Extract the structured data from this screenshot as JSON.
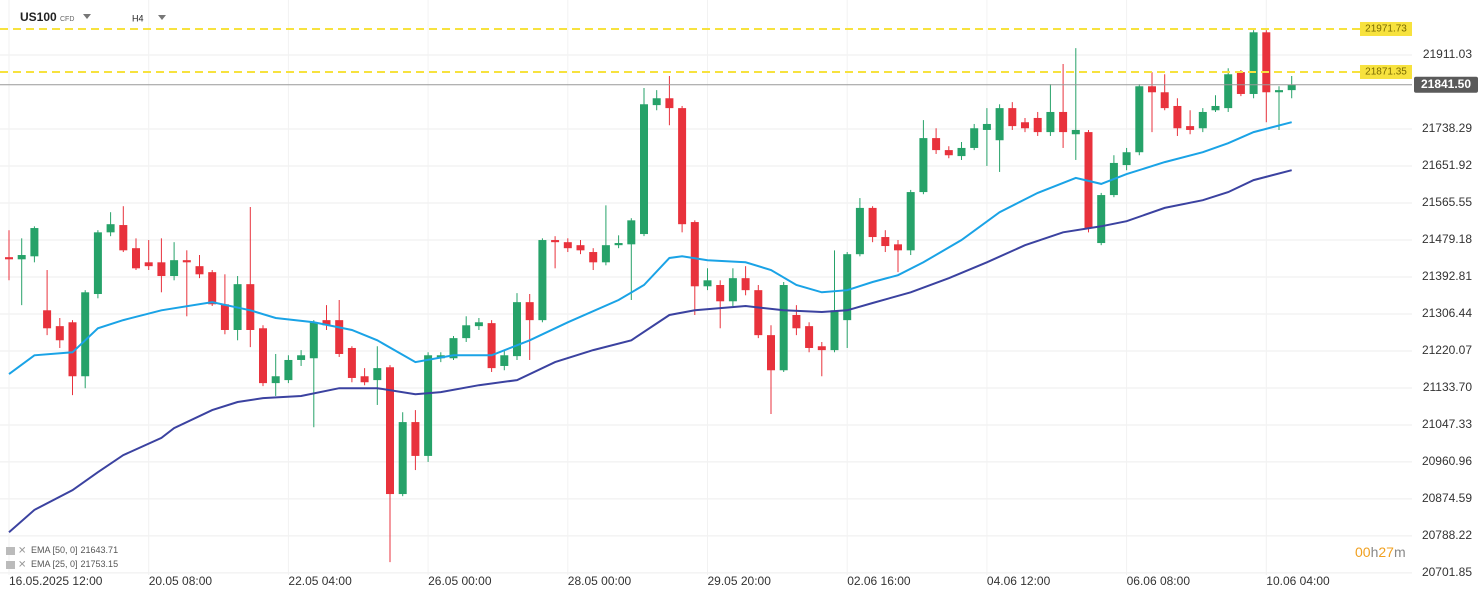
{
  "chart_data": {
    "type": "candlestick",
    "symbol": "US100",
    "symbol_tag": "CFD",
    "timeframe": "H4",
    "up_color": "#26a269",
    "down_color": "#e8323c",
    "categories": [
      "16.05.2025 12:00",
      null,
      null,
      null,
      null,
      null,
      null,
      null,
      null,
      null,
      null,
      "20.05 08:00",
      null,
      null,
      null,
      null,
      null,
      null,
      null,
      null,
      null,
      null,
      "22.05 04:00",
      null,
      null,
      null,
      null,
      null,
      null,
      null,
      null,
      null,
      null,
      "26.05 00:00",
      null,
      null,
      null,
      null,
      null,
      null,
      null,
      null,
      null,
      null,
      "28.05 00:00",
      null,
      null,
      null,
      null,
      null,
      null,
      null,
      null,
      null,
      null,
      "29.05 20:00",
      null,
      null,
      null,
      null,
      null,
      null,
      null,
      null,
      null,
      null,
      "02.06 16:00",
      null,
      null,
      null,
      null,
      null,
      null,
      null,
      null,
      null,
      null,
      "04.06 12:00",
      null,
      null,
      null,
      null,
      null,
      null,
      null,
      null,
      null,
      null,
      "06.06 08:00",
      null,
      null,
      null,
      null,
      null,
      null,
      null,
      null,
      null,
      null,
      "10.06 04:00",
      null,
      null
    ],
    "open": [
      21439,
      21434,
      21441,
      21315,
      21278,
      21287,
      21161,
      21353,
      21497,
      21514,
      21460,
      21427,
      21427,
      21395,
      21432,
      21418,
      21404,
      21329,
      21269,
      21376,
      21273,
      21145,
      21152,
      21199,
      21203,
      21292,
      21292,
      21227,
      21161,
      21152,
      21182,
      20886,
      21054,
      20975,
      21203,
      21203,
      21250,
      21278,
      21285,
      21185,
      21208,
      21334,
      21292,
      21479,
      21474,
      21467,
      21451,
      21427,
      21467,
      21469,
      21493,
      21794,
      21810,
      21787,
      21521,
      21371,
      21374,
      21336,
      21390,
      21362,
      21257,
      21175,
      21304,
      21278,
      21231,
      21222,
      21292,
      21446,
      21554,
      21486,
      21469,
      21455,
      21591,
      21717,
      21689,
      21675,
      21694,
      21736,
      21712,
      21787,
      21754,
      21764,
      21731,
      21778,
      21726,
      21731,
      21472,
      21584,
      21654,
      21684,
      21838,
      21824,
      21792,
      21745,
      21740,
      21782,
      21787,
      21871,
      21820,
      21964,
      21824,
      21829
    ],
    "high": [
      21502,
      21483,
      21511,
      21409,
      21297,
      21292,
      21362,
      21502,
      21544,
      21558,
      21483,
      21479,
      21483,
      21474,
      21455,
      21444,
      21409,
      21399,
      21395,
      21556,
      21280,
      21213,
      21210,
      21222,
      21292,
      21327,
      21339,
      21231,
      21180,
      21231,
      21187,
      21077,
      21082,
      21217,
      21217,
      21255,
      21301,
      21297,
      21292,
      21222,
      21355,
      21353,
      21483,
      21488,
      21483,
      21479,
      21460,
      21560,
      21490,
      21530,
      21834,
      21829,
      21862,
      21792,
      21525,
      21413,
      21385,
      21413,
      21418,
      21374,
      21280,
      21381,
      21327,
      21287,
      21241,
      21455,
      21451,
      21577,
      21558,
      21502,
      21479,
      21596,
      21759,
      21740,
      21698,
      21708,
      21750,
      21787,
      21796,
      21801,
      21764,
      21778,
      21843,
      21890,
      21927,
      21736,
      21589,
      21677,
      21694,
      21843,
      21871,
      21866,
      21810,
      21782,
      21787,
      21817,
      21880,
      21876,
      21969,
      21969,
      21838,
      21862
    ],
    "low": [
      21385,
      21327,
      21427,
      21257,
      21227,
      21117,
      21133,
      21343,
      21488,
      21451,
      21409,
      21409,
      21357,
      21385,
      21301,
      21390,
      21325,
      21259,
      21245,
      21229,
      21138,
      21115,
      21145,
      21185,
      21042,
      21269,
      21206,
      21147,
      21140,
      21094,
      20727,
      20881,
      20942,
      20961,
      21194,
      21199,
      21241,
      21269,
      21171,
      21175,
      21199,
      21199,
      21287,
      21413,
      21451,
      21446,
      21409,
      21420,
      21460,
      21339,
      21488,
      21782,
      21747,
      21497,
      21304,
      21362,
      21273,
      21325,
      21350,
      21250,
      21073,
      21171,
      21257,
      21217,
      21161,
      21217,
      21227,
      21441,
      21474,
      21451,
      21404,
      21444,
      21586,
      21680,
      21670,
      21666,
      21689,
      21652,
      21638,
      21736,
      21731,
      21722,
      21722,
      21694,
      21666,
      21497,
      21467,
      21579,
      21642,
      21677,
      21731,
      21782,
      21722,
      21726,
      21731,
      21778,
      21778,
      21815,
      21810,
      21754,
      21736,
      21810
    ],
    "close": [
      21434,
      21444,
      21507,
      21273,
      21245,
      21161,
      21357,
      21497,
      21516,
      21455,
      21413,
      21418,
      21395,
      21432,
      21427,
      21399,
      21329,
      21269,
      21376,
      21269,
      21145,
      21161,
      21199,
      21210,
      21287,
      21280,
      21213,
      21157,
      21147,
      21180,
      20886,
      21054,
      20975,
      21210,
      21210,
      21250,
      21280,
      21287,
      21180,
      21210,
      21334,
      21292,
      21479,
      21474,
      21460,
      21455,
      21427,
      21467,
      21472,
      21525,
      21796,
      21810,
      21787,
      21516,
      21371,
      21385,
      21336,
      21390,
      21362,
      21257,
      21175,
      21374,
      21273,
      21227,
      21222,
      21315,
      21446,
      21554,
      21486,
      21465,
      21455,
      21591,
      21717,
      21689,
      21677,
      21694,
      21740,
      21750,
      21787,
      21745,
      21740,
      21731,
      21778,
      21731,
      21736,
      21507,
      21584,
      21659,
      21684,
      21838,
      21824,
      21787,
      21740,
      21736,
      21778,
      21792,
      21866,
      21820,
      21964,
      21824,
      21829,
      21841.5
    ],
    "series": [
      {
        "name": "EMA [50, 0]",
        "color": "#3b42a0",
        "last_value": 21643.71,
        "x": [
          0,
          2,
          5,
          7,
          9,
          12,
          13,
          16,
          18,
          20,
          23,
          26,
          29,
          32,
          34,
          37,
          40,
          43,
          46,
          49,
          52,
          54,
          58,
          61,
          64,
          66,
          68,
          71,
          74,
          77,
          80,
          83,
          86,
          88,
          91,
          94,
          96,
          98,
          101
        ],
        "values": [
          20797,
          20849,
          20895,
          20937,
          20977,
          21017,
          21040,
          21082,
          21101,
          21110,
          21115,
          21133,
          21133,
          21119,
          21124,
          21140,
          21152,
          21194,
          21222,
          21245,
          21304,
          21315,
          21325,
          21315,
          21311,
          21315,
          21332,
          21357,
          21390,
          21427,
          21467,
          21497,
          21511,
          21523,
          21554,
          21572,
          21591,
          21619,
          21642
        ]
      },
      {
        "name": "EMA [25, 0]",
        "color": "#1aa3e6",
        "last_value": 21753.15,
        "x": [
          0,
          2,
          5,
          7,
          9,
          12,
          16,
          19,
          21,
          24,
          27,
          29,
          32,
          35,
          38,
          41,
          44,
          48,
          50,
          52,
          53,
          55,
          58,
          60,
          62,
          64,
          66,
          68,
          70,
          72,
          75,
          78,
          81,
          84,
          86,
          88,
          91,
          94,
          96,
          98,
          101
        ],
        "values": [
          21166,
          21210,
          21217,
          21273,
          21292,
          21315,
          21334,
          21315,
          21297,
          21287,
          21269,
          21245,
          21194,
          21210,
          21210,
          21245,
          21287,
          21339,
          21374,
          21437,
          21441,
          21432,
          21427,
          21409,
          21374,
          21357,
          21362,
          21381,
          21397,
          21427,
          21479,
          21544,
          21589,
          21624,
          21610,
          21633,
          21661,
          21684,
          21705,
          21731,
          21754
        ]
      }
    ],
    "levels": [
      {
        "value": 21971.73,
        "color": "#f7e23e"
      },
      {
        "value": 21871.35,
        "color": "#f7e23e"
      }
    ],
    "last_price": {
      "value": 21841.5,
      "label": "21841.50"
    },
    "timer": [
      "00",
      "h",
      "27",
      "m"
    ],
    "ylim": [
      20697,
      22039.4
    ],
    "yticks": [
      21911.03,
      21738.29,
      21651.92,
      21565.55,
      21479.18,
      21392.81,
      21306.44,
      21220.07,
      {
        "value": 21133.7,
        "label": "21133.70"
      },
      21047.33,
      20960.96,
      20874.59,
      20788.22,
      20701.85
    ],
    "grid": true
  }
}
